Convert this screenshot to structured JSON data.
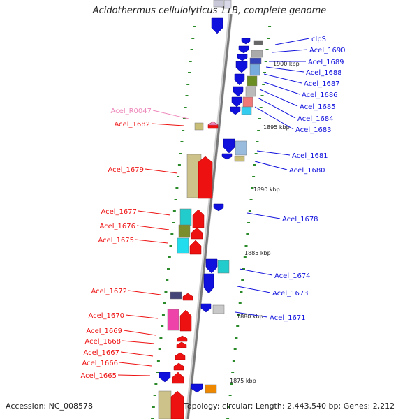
{
  "title": "Acidothermus cellulolyticus 11B, complete genome",
  "accession": "Accession: NC_008578",
  "topology": "Topology: circular; Length: 2,443,540 bp; Genes: 2,212",
  "colors": {
    "forward": "#ee1111",
    "reverse": "#1111dd",
    "rna": "#ee88bb",
    "axis": "#888888",
    "tick": "#2a8a2a"
  },
  "kbp_marks": [
    {
      "kbp": 1900,
      "label": "1900 kbp"
    },
    {
      "kbp": 1895,
      "label": "1895 kbp"
    },
    {
      "kbp": 1890,
      "label": "1890 kbp"
    },
    {
      "kbp": 1885,
      "label": "1885 kbp"
    },
    {
      "kbp": 1880,
      "label": "1880 kbp"
    },
    {
      "kbp": 1875,
      "label": "1875 kbp"
    }
  ],
  "genes": [
    {
      "name": "clpS",
      "strand": "-"
    },
    {
      "name": "Acel_1690",
      "strand": "-"
    },
    {
      "name": "Acel_1689",
      "strand": "-"
    },
    {
      "name": "Acel_1688",
      "strand": "-"
    },
    {
      "name": "Acel_1687",
      "strand": "-"
    },
    {
      "name": "Acel_1686",
      "strand": "-"
    },
    {
      "name": "Acel_1685",
      "strand": "-"
    },
    {
      "name": "Acel_1684",
      "strand": "-"
    },
    {
      "name": "Acel_1683",
      "strand": "-"
    },
    {
      "name": "Acel_R0047",
      "strand": "+"
    },
    {
      "name": "Acel_1682",
      "strand": "+"
    },
    {
      "name": "Acel_1681",
      "strand": "-"
    },
    {
      "name": "Acel_1680",
      "strand": "-"
    },
    {
      "name": "Acel_1679",
      "strand": "+"
    },
    {
      "name": "Acel_1678",
      "strand": "-"
    },
    {
      "name": "Acel_1677",
      "strand": "+"
    },
    {
      "name": "Acel_1676",
      "strand": "+"
    },
    {
      "name": "Acel_1675",
      "strand": "+"
    },
    {
      "name": "Acel_1674",
      "strand": "-"
    },
    {
      "name": "Acel_1673",
      "strand": "-"
    },
    {
      "name": "Acel_1672",
      "strand": "+"
    },
    {
      "name": "Acel_1671",
      "strand": "-"
    },
    {
      "name": "Acel_1670",
      "strand": "+"
    },
    {
      "name": "Acel_1669",
      "strand": "+"
    },
    {
      "name": "Acel_1668",
      "strand": "+"
    },
    {
      "name": "Acel_1667",
      "strand": "+"
    },
    {
      "name": "Acel_1666",
      "strand": "+"
    },
    {
      "name": "Acel_1665",
      "strand": "+"
    }
  ]
}
